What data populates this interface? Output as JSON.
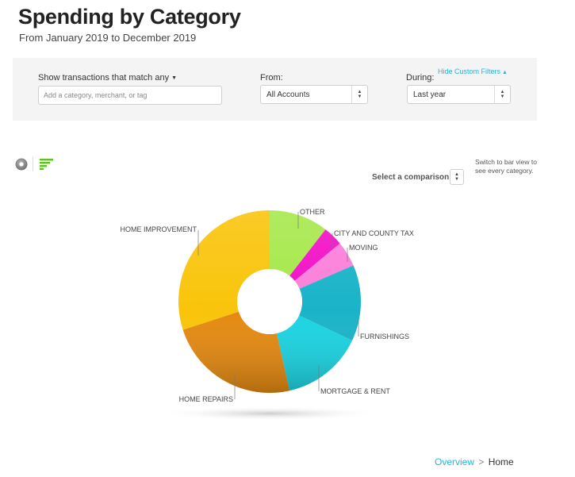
{
  "header": {
    "title": "Spending by Category",
    "subtitle": "From January 2019 to December 2019"
  },
  "filters": {
    "match_label": "Show transactions that match",
    "match_value": "any",
    "search_placeholder": "Add a category, merchant, or tag",
    "from_label": "From:",
    "from_value": "All Accounts",
    "during_label": "During:",
    "during_value": "Last year",
    "hide_filters_link": "Hide Custom Filters"
  },
  "view_toggle": {
    "donut_icon": "donut-view-icon",
    "bars_icon": "bar-view-icon",
    "bars_color": "#5cc41a"
  },
  "comparison": {
    "label": "Select a comparison",
    "switch_note": "Switch to bar view to see every category."
  },
  "chart_data": {
    "type": "pie",
    "donut": true,
    "labels": [
      "OTHER",
      "CITY AND COUNTY TAX",
      "MOVING",
      "FURNISHINGS",
      "MORTGAGE & RENT",
      "HOME REPAIRS",
      "HOME IMPROVEMENT"
    ],
    "values": [
      10.5,
      3.5,
      4.5,
      13.5,
      14.5,
      23.5,
      30.0
    ],
    "colors": [
      "#a6e84a",
      "#f20fc6",
      "#fb7fd9",
      "#19b3c8",
      "#1ad4e2",
      "#e4890f",
      "#f9c40a"
    ]
  },
  "breadcrumb": {
    "parent": "Overview",
    "separator": ">",
    "current": "Home"
  }
}
